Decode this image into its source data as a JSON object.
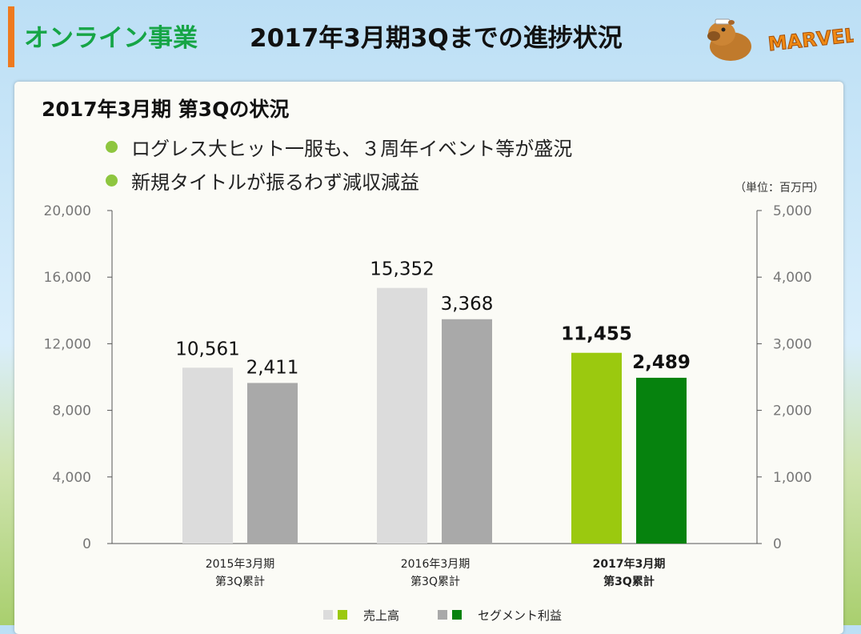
{
  "header": {
    "section": "オンライン事業",
    "title": "2017年3月期3Qまでの進捗状況",
    "brand": "MARVELOUS!"
  },
  "panel": {
    "title": "2017年3月期 第3Qの状況",
    "bullets": [
      "ログレス大ヒット一服も、３周年イベント等が盛況",
      "新規タイトルが振るわず減収減益"
    ],
    "unit": "（単位：百万円）"
  },
  "colors": {
    "accent": "#ee7a1f",
    "section_title": "#16a546",
    "bullet_dot": "#8ec63f",
    "sales_past": "#dcdcdc",
    "profit_past": "#a9a9a9",
    "sales_current": "#9bc90f",
    "profit_current": "#06820e"
  },
  "chart_data": {
    "type": "bar",
    "categories": [
      [
        "2015年3月期",
        "第3Q累計"
      ],
      [
        "2016年3月期",
        "第3Q累計"
      ],
      [
        "2017年3月期",
        "第3Q累計"
      ]
    ],
    "category_labels": [
      {
        "line1": "2015年3月期",
        "line2": "第3Q累計"
      },
      {
        "line1": "2016年3月期",
        "line2": "第3Q累計"
      },
      {
        "line1": "2017年3月期",
        "line2": "第3Q累計"
      }
    ],
    "highlight_index": 2,
    "series": [
      {
        "name": "売上高",
        "axis": "left",
        "values": [
          10561,
          15352,
          11455
        ],
        "labels": [
          "10,561",
          "15,352",
          "11,455"
        ]
      },
      {
        "name": "セグメント利益",
        "axis": "right",
        "values": [
          2411,
          3368,
          2489
        ],
        "labels": [
          "2,411",
          "3,368",
          "2,489"
        ]
      }
    ],
    "left_axis": {
      "ylim": [
        0,
        20000
      ],
      "ticks": [
        "0",
        "4,000",
        "8,000",
        "12,000",
        "16,000",
        "20,000"
      ]
    },
    "right_axis": {
      "ylim": [
        0,
        5000
      ],
      "ticks": [
        "0",
        "1,000",
        "2,000",
        "3,000",
        "4,000",
        "5,000"
      ]
    },
    "grid": false,
    "legend_position": "bottom"
  }
}
